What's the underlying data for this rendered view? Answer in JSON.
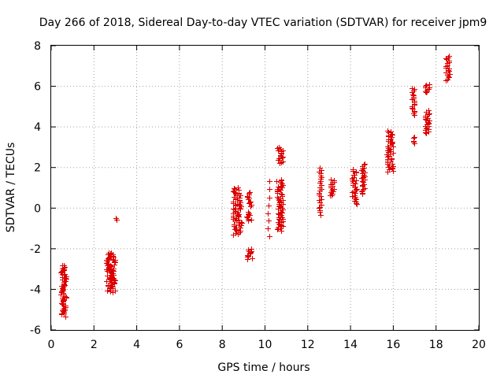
{
  "chart_data": {
    "type": "scatter",
    "title": "Day 266 of 2018, Sidereal Day-to-day VTEC variation (SDTVAR) for receiver jpm9",
    "xlabel": "GPS time / hours",
    "ylabel": "SDTVAR / TECUs",
    "xlim": [
      0,
      20
    ],
    "ylim": [
      -6,
      8
    ],
    "xticks": [
      "0",
      "2",
      "4",
      "6",
      "8",
      "10",
      "12",
      "14",
      "16",
      "18",
      "20"
    ],
    "yticks": [
      "-6",
      "-4",
      "-2",
      "0",
      "2",
      "4",
      "6",
      "8"
    ],
    "grid": true,
    "marker": "+",
    "series": [
      {
        "name": "SDTVAR",
        "color": "#dd0000",
        "clusters": [
          {
            "x": [
              0.45,
              0.7
            ],
            "y": [
              -5.3,
              -2.8
            ],
            "n": 60
          },
          {
            "x": [
              2.55,
              3.0
            ],
            "y": [
              -4.1,
              -2.2
            ],
            "n": 80
          },
          {
            "x": [
              3.0,
              3.05
            ],
            "y": [
              -0.6,
              -0.5
            ],
            "n": 2
          },
          {
            "x": [
              8.5,
              8.9
            ],
            "y": [
              -1.3,
              1.0
            ],
            "n": 70
          },
          {
            "x": [
              9.15,
              9.4
            ],
            "y": [
              -2.5,
              -2.0
            ],
            "n": 12
          },
          {
            "x": [
              9.15,
              9.4
            ],
            "y": [
              -0.6,
              -0.2
            ],
            "n": 10
          },
          {
            "x": [
              9.15,
              9.4
            ],
            "y": [
              0.1,
              0.8
            ],
            "n": 12
          },
          {
            "x": [
              10.1,
              10.2
            ],
            "y": [
              -1.4,
              1.3
            ],
            "n": 8
          },
          {
            "x": [
              10.55,
              10.85
            ],
            "y": [
              -1.1,
              1.4
            ],
            "n": 60
          },
          {
            "x": [
              10.55,
              10.85
            ],
            "y": [
              2.2,
              3.0
            ],
            "n": 18
          },
          {
            "x": [
              12.5,
              12.65
            ],
            "y": [
              -0.3,
              2.0
            ],
            "n": 25
          },
          {
            "x": [
              13.05,
              13.25
            ],
            "y": [
              0.6,
              1.4
            ],
            "n": 18
          },
          {
            "x": [
              14.05,
              14.3
            ],
            "y": [
              0.2,
              1.9
            ],
            "n": 30
          },
          {
            "x": [
              14.5,
              14.7
            ],
            "y": [
              0.7,
              2.2
            ],
            "n": 25
          },
          {
            "x": [
              15.7,
              16.0
            ],
            "y": [
              1.8,
              3.8
            ],
            "n": 45
          },
          {
            "x": [
              16.85,
              17.0
            ],
            "y": [
              3.2,
              3.5
            ],
            "n": 5
          },
          {
            "x": [
              16.85,
              17.0
            ],
            "y": [
              4.6,
              5.9
            ],
            "n": 20
          },
          {
            "x": [
              17.45,
              17.7
            ],
            "y": [
              3.7,
              4.8
            ],
            "n": 25
          },
          {
            "x": [
              17.45,
              17.7
            ],
            "y": [
              5.7,
              6.1
            ],
            "n": 10
          },
          {
            "x": [
              18.45,
              18.65
            ],
            "y": [
              6.3,
              7.5
            ],
            "n": 20
          }
        ]
      }
    ]
  }
}
